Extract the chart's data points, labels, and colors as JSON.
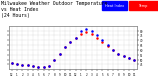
{
  "title": "Milwaukee Weather Outdoor Temperature\nvs Heat Index\n(24 Hours)",
  "title_fontsize": 3.5,
  "bg_color": "#ffffff",
  "plot_bg": "#ffffff",
  "grid_color": "#aaaaaa",
  "temp_color": "#ff0000",
  "heat_color": "#0000ff",
  "hours": [
    0,
    1,
    2,
    3,
    4,
    5,
    6,
    7,
    8,
    9,
    10,
    11,
    12,
    13,
    14,
    15,
    16,
    17,
    18,
    19,
    20,
    21,
    22,
    23
  ],
  "temp": [
    46,
    45,
    44,
    44,
    43,
    42,
    42,
    43,
    50,
    56,
    63,
    68,
    72,
    76,
    78,
    76,
    72,
    68,
    64,
    60,
    56,
    54,
    52,
    50
  ],
  "heat": [
    46,
    45,
    44,
    44,
    43,
    42,
    42,
    43,
    50,
    56,
    63,
    68,
    72,
    80,
    82,
    80,
    75,
    70,
    65,
    60,
    56,
    54,
    52,
    50
  ],
  "ylim": [
    40,
    85
  ],
  "ytick_vals": [
    45,
    50,
    55,
    60,
    65,
    70,
    75,
    80
  ],
  "xtick_labels": [
    "12",
    "1",
    "2",
    "3",
    "4",
    "5",
    "6",
    "7",
    "8",
    "9",
    "10",
    "11",
    "12",
    "1",
    "2",
    "3",
    "4",
    "5",
    "6",
    "7",
    "8",
    "9",
    "10",
    "11"
  ],
  "legend_temp": "Temp",
  "legend_heat": "Heat Index",
  "marker_size": 1.8
}
